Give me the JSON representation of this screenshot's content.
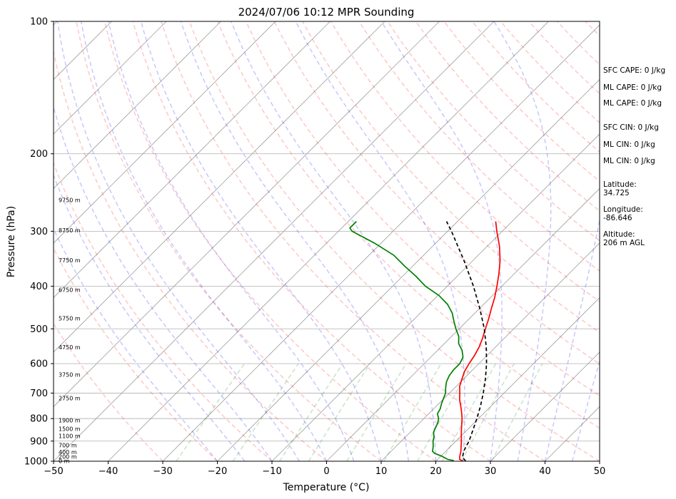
{
  "chart_data": {
    "type": "line",
    "title": "2024/07/06 10:12 MPR Sounding",
    "xlabel": "Temperature (°C)",
    "ylabel": "Pressure (hPa)",
    "xlim": [
      -50,
      50
    ],
    "ylim": [
      1000,
      100
    ],
    "y_scale": "log",
    "skew": "45 degree skew-T",
    "grid": true,
    "x_ticks": [
      "−50",
      "−40",
      "−30",
      "−20",
      "−10",
      "0",
      "10",
      "20",
      "30",
      "40",
      "50"
    ],
    "y_ticks": [
      {
        "p": 100,
        "label": "100"
      },
      {
        "p": 200,
        "label": "200"
      },
      {
        "p": 300,
        "label": "300"
      },
      {
        "p": 400,
        "label": "400"
      },
      {
        "p": 500,
        "label": "500"
      },
      {
        "p": 600,
        "label": "600"
      },
      {
        "p": 700,
        "label": "700"
      },
      {
        "p": 800,
        "label": "800"
      },
      {
        "p": 900,
        "label": "900"
      },
      {
        "p": 1000,
        "label": "1000"
      }
    ],
    "series": [
      {
        "color": "#ff0000",
        "points": [
          [
            1000,
            25
          ],
          [
            990,
            24
          ],
          [
            975,
            23.5
          ],
          [
            950,
            22.8
          ],
          [
            925,
            21.9
          ],
          [
            900,
            21
          ],
          [
            875,
            20
          ],
          [
            850,
            19
          ],
          [
            825,
            18
          ],
          [
            800,
            17
          ],
          [
            775,
            15.8
          ],
          [
            750,
            14.5
          ],
          [
            725,
            13.1
          ],
          [
            700,
            11.9
          ],
          [
            675,
            10.6
          ],
          [
            650,
            9.7
          ],
          [
            625,
            8.8
          ],
          [
            600,
            8.2
          ],
          [
            575,
            7.7
          ],
          [
            550,
            7
          ],
          [
            525,
            6
          ],
          [
            500,
            4.8
          ],
          [
            475,
            3.6
          ],
          [
            450,
            2.2
          ],
          [
            425,
            0.8
          ],
          [
            400,
            -0.9
          ],
          [
            375,
            -2.8
          ],
          [
            350,
            -5
          ],
          [
            325,
            -7.7
          ],
          [
            300,
            -11
          ],
          [
            285,
            -13
          ]
        ]
      },
      {
        "color": "#008000",
        "points": [
          [
            997,
            23.2
          ],
          [
            990,
            21.8
          ],
          [
            975,
            20.3
          ],
          [
            960,
            18.4
          ],
          [
            950,
            17.6
          ],
          [
            925,
            16.8
          ],
          [
            900,
            15.8
          ],
          [
            880,
            15.2
          ],
          [
            860,
            14.3
          ],
          [
            840,
            13.8
          ],
          [
            820,
            13.4
          ],
          [
            800,
            12.7
          ],
          [
            780,
            11.6
          ],
          [
            760,
            11.2
          ],
          [
            740,
            10.5
          ],
          [
            720,
            9.9
          ],
          [
            700,
            9.3
          ],
          [
            680,
            8.3
          ],
          [
            660,
            7.4
          ],
          [
            640,
            6.8
          ],
          [
            620,
            6.5
          ],
          [
            600,
            6.5
          ],
          [
            580,
            5.9
          ],
          [
            560,
            4.5
          ],
          [
            540,
            2.6
          ],
          [
            520,
            1.3
          ],
          [
            500,
            -0.6
          ],
          [
            480,
            -2.4
          ],
          [
            460,
            -4.2
          ],
          [
            440,
            -6.6
          ],
          [
            420,
            -9.8
          ],
          [
            400,
            -14
          ],
          [
            380,
            -17.5
          ],
          [
            360,
            -21.5
          ],
          [
            340,
            -25.5
          ],
          [
            320,
            -31
          ],
          [
            300,
            -37.5
          ],
          [
            295,
            -38.5
          ],
          [
            285,
            -38.5
          ]
        ]
      },
      {
        "color": "#000000",
        "dash": "dashed",
        "points": [
          [
            1000,
            25.5
          ],
          [
            980,
            24.2
          ],
          [
            960,
            23.6
          ],
          [
            940,
            23.1
          ],
          [
            900,
            22.4
          ],
          [
            850,
            21.1
          ],
          [
            800,
            19.7
          ],
          [
            750,
            18.1
          ],
          [
            700,
            16.2
          ],
          [
            650,
            14
          ],
          [
            600,
            11.4
          ],
          [
            550,
            8.3
          ],
          [
            500,
            4.6
          ],
          [
            450,
            0.1
          ],
          [
            400,
            -5.2
          ],
          [
            350,
            -11.6
          ],
          [
            300,
            -19.3
          ],
          [
            285,
            -22
          ]
        ]
      }
    ],
    "background_lines": {
      "dry_adiabats_color": "#ff0000",
      "moist_adiabats_color": "#0000ff",
      "mixing_ratio_color": "#008000",
      "isotherm_color": "#000000"
    },
    "height_labels": [
      {
        "p": 1000,
        "label": "0 m"
      },
      {
        "p": 977.3,
        "label": "200 m"
      },
      {
        "p": 953.9,
        "label": "400 m"
      },
      {
        "p": 922,
        "label": "700 m"
      },
      {
        "p": 878,
        "label": "1100 m"
      },
      {
        "p": 846,
        "label": "1500 m"
      },
      {
        "p": 808,
        "label": "1900 m"
      },
      {
        "p": 720,
        "label": "2750 m"
      },
      {
        "p": 637,
        "label": "3750 m"
      },
      {
        "p": 551,
        "label": "4750 m"
      },
      {
        "p": 474,
        "label": "5750 m"
      },
      {
        "p": 408,
        "label": "6750 m"
      },
      {
        "p": 350,
        "label": "7750 m"
      },
      {
        "p": 299,
        "label": "8750 m"
      },
      {
        "p": 255,
        "label": "9750 m"
      }
    ],
    "annotations": [
      "SFC CAPE: 0 J/kg",
      "ML CAPE: 0 J/kg",
      "ML CAPE: 0 J/kg",
      "SFC CIN: 0 J/kg",
      "ML CIN: 0 J/kg",
      "ML CIN: 0 J/kg",
      "Latitude:",
      "34.725",
      "Longitude:",
      "-86.646",
      "Altitude:",
      "206 m AGL"
    ]
  }
}
